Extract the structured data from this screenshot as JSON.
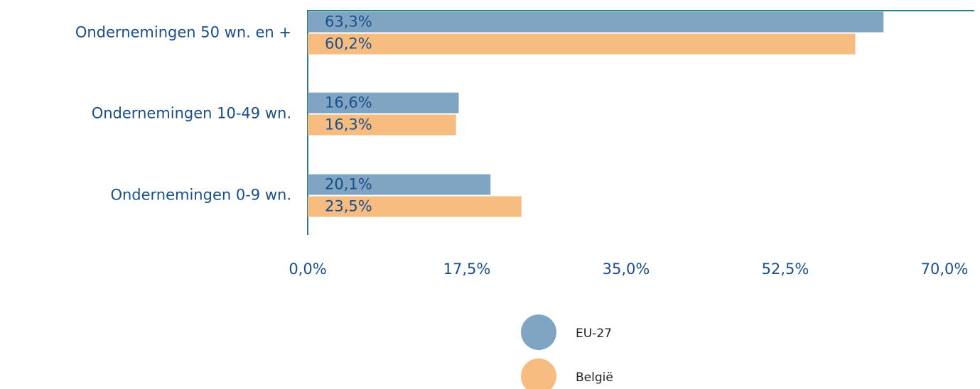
{
  "chart_data": {
    "type": "bar",
    "orientation": "horizontal",
    "categories": [
      "Ondernemingen 50 wn. en +",
      "Ondernemingen 10-49 wn.",
      "Ondernemingen 0-9 wn."
    ],
    "series": [
      {
        "name": "EU-27",
        "color": "#7fa5c3",
        "values": [
          63.3,
          16.6,
          20.1
        ],
        "value_labels": [
          "63,3%",
          "16,6%",
          "20,1%"
        ]
      },
      {
        "name": "België",
        "color": "#f7bc80",
        "values": [
          60.2,
          16.3,
          23.5
        ],
        "value_labels": [
          "60,2%",
          "16,3%",
          "23,5%"
        ]
      }
    ],
    "xlim": [
      0,
      70
    ],
    "xticks": [
      {
        "value": 0,
        "label": "0,0%"
      },
      {
        "value": 17.5,
        "label": "17,5%"
      },
      {
        "value": 35,
        "label": "35,0%"
      },
      {
        "value": 52.5,
        "label": "52,5%"
      },
      {
        "value": 70,
        "label": "70,0%"
      }
    ],
    "legend": "bottom"
  }
}
